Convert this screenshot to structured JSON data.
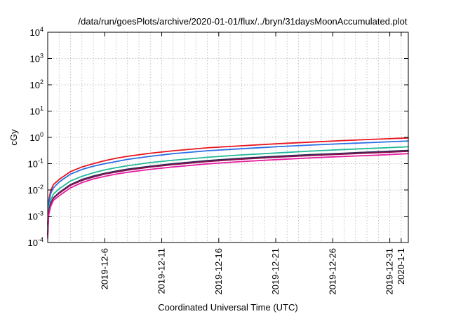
{
  "chart_data": {
    "type": "line",
    "title": "/data/run/goesPlots/archive/2020-01-01/flux/../bryn/31daysMoonAccumulated.plot",
    "xlabel": "Coordinated Universal Time (UTC)",
    "ylabel": "cGy",
    "yscale": "log",
    "ylim": [
      0.0001,
      10000
    ],
    "xlim": [
      "2019-12-01",
      "2020-01-01T15:00"
    ],
    "grid": true,
    "xticks": [
      {
        "label": "2019-12-6",
        "value": "2019-12-06"
      },
      {
        "label": "2019-12-11",
        "value": "2019-12-11"
      },
      {
        "label": "2019-12-16",
        "value": "2019-12-16"
      },
      {
        "label": "2019-12-21",
        "value": "2019-12-21"
      },
      {
        "label": "2019-12-26",
        "value": "2019-12-26"
      },
      {
        "label": "2019-12-31",
        "value": "2019-12-31"
      },
      {
        "label": "2020-1-1",
        "value": "2020-01-01"
      }
    ],
    "yticks": [
      {
        "base": "10",
        "exp": "-4",
        "value": 0.0001
      },
      {
        "base": "10",
        "exp": "-3",
        "value": 0.001
      },
      {
        "base": "10",
        "exp": "-2",
        "value": 0.01
      },
      {
        "base": "10",
        "exp": "-1",
        "value": 0.1
      },
      {
        "base": "10",
        "exp": "0",
        "value": 1
      },
      {
        "base": "10",
        "exp": "1",
        "value": 10
      },
      {
        "base": "10",
        "exp": "2",
        "value": 100
      },
      {
        "base": "10",
        "exp": "3",
        "value": 1000
      },
      {
        "base": "10",
        "exp": "4",
        "value": 10000
      }
    ],
    "x": [
      "2019-12-01T00:00",
      "2019-12-01T02:00",
      "2019-12-01T06:00",
      "2019-12-01T12:00",
      "2019-12-02T00:00",
      "2019-12-03T00:00",
      "2019-12-04T00:00",
      "2019-12-05T00:00",
      "2019-12-06T00:00",
      "2019-12-07T00:00",
      "2019-12-08T00:00",
      "2019-12-10T00:00",
      "2019-12-12T00:00",
      "2019-12-15T00:00",
      "2019-12-18T00:00",
      "2019-12-21T00:00",
      "2019-12-24T00:00",
      "2019-12-27T00:00",
      "2019-12-30T00:00",
      "2020-01-01T15:00"
    ],
    "series": [
      {
        "color": "#e8141e",
        "values": [
          0.0005,
          0.004,
          0.009,
          0.016,
          0.025,
          0.05,
          0.075,
          0.1,
          0.13,
          0.16,
          0.19,
          0.25,
          0.31,
          0.4,
          0.48,
          0.57,
          0.66,
          0.76,
          0.86,
          0.95
        ]
      },
      {
        "color": "#2a6fe6",
        "values": [
          0.0004,
          0.003,
          0.007,
          0.012,
          0.02,
          0.04,
          0.06,
          0.08,
          0.1,
          0.12,
          0.145,
          0.19,
          0.24,
          0.31,
          0.37,
          0.44,
          0.51,
          0.58,
          0.65,
          0.73
        ]
      },
      {
        "color": "#23b899",
        "values": [
          0.0003,
          0.002,
          0.004,
          0.007,
          0.011,
          0.022,
          0.033,
          0.045,
          0.058,
          0.07,
          0.083,
          0.11,
          0.135,
          0.175,
          0.215,
          0.255,
          0.3,
          0.345,
          0.39,
          0.44
        ]
      },
      {
        "color": "#2b2b57",
        "values": [
          0.0002,
          0.0014,
          0.003,
          0.005,
          0.008,
          0.016,
          0.025,
          0.034,
          0.043,
          0.052,
          0.062,
          0.08,
          0.1,
          0.13,
          0.16,
          0.19,
          0.22,
          0.25,
          0.285,
          0.32
        ]
      },
      {
        "color": "#8a1050",
        "values": [
          0.0002,
          0.0013,
          0.0028,
          0.0048,
          0.0075,
          0.015,
          0.023,
          0.031,
          0.04,
          0.048,
          0.057,
          0.074,
          0.092,
          0.12,
          0.148,
          0.175,
          0.203,
          0.232,
          0.262,
          0.295
        ]
      },
      {
        "color": "#e61ea0",
        "values": [
          0.00015,
          0.0011,
          0.0023,
          0.004,
          0.006,
          0.012,
          0.019,
          0.026,
          0.033,
          0.04,
          0.047,
          0.061,
          0.075,
          0.098,
          0.12,
          0.142,
          0.165,
          0.188,
          0.212,
          0.24
        ]
      }
    ]
  }
}
